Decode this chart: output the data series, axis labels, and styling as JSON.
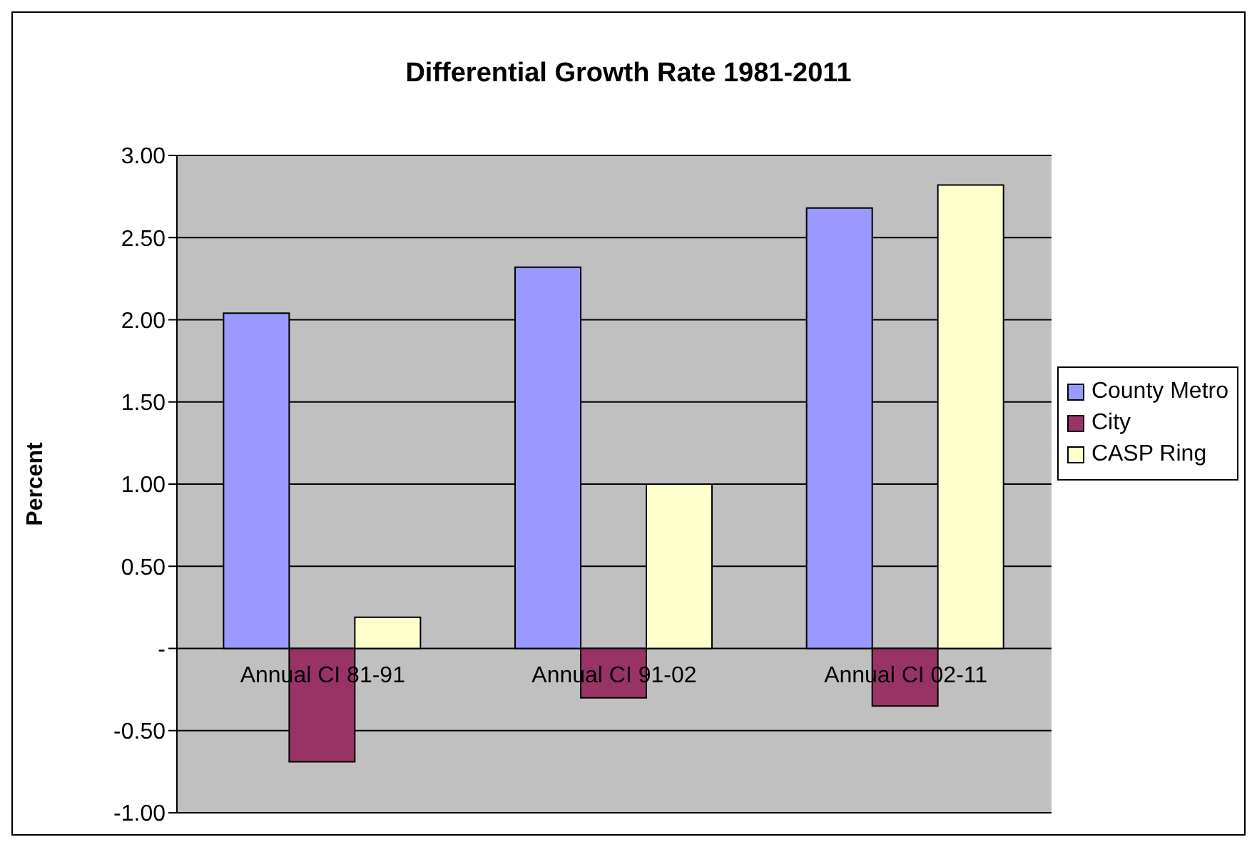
{
  "chart_data": {
    "type": "bar",
    "title": "Differential Growth Rate 1981-2011",
    "ylabel": "Percent",
    "categories": [
      "Annual CI 81-91",
      "Annual CI 91-02",
      "Annual CI 02-11"
    ],
    "series": [
      {
        "name": "County Metro",
        "color": "#9999ff",
        "values": [
          2.04,
          2.32,
          2.68
        ]
      },
      {
        "name": "City",
        "color": "#993366",
        "values": [
          -0.69,
          -0.3,
          -0.35
        ]
      },
      {
        "name": "CASP Ring",
        "color": "#ffffcc",
        "values": [
          0.19,
          1.0,
          2.82
        ]
      }
    ],
    "ylim": [
      -1,
      3
    ],
    "yticks": [
      {
        "value": -1,
        "label": "-1.00"
      },
      {
        "value": -0.5,
        "label": "-0.50"
      },
      {
        "value": 0,
        "label": "-"
      },
      {
        "value": 0.5,
        "label": "0.50"
      },
      {
        "value": 1,
        "label": "1.00"
      },
      {
        "value": 1.5,
        "label": "1.50"
      },
      {
        "value": 2,
        "label": "2.00"
      },
      {
        "value": 2.5,
        "label": "2.50"
      },
      {
        "value": 3,
        "label": "3.00"
      }
    ],
    "grid": "y",
    "legend": "right"
  }
}
